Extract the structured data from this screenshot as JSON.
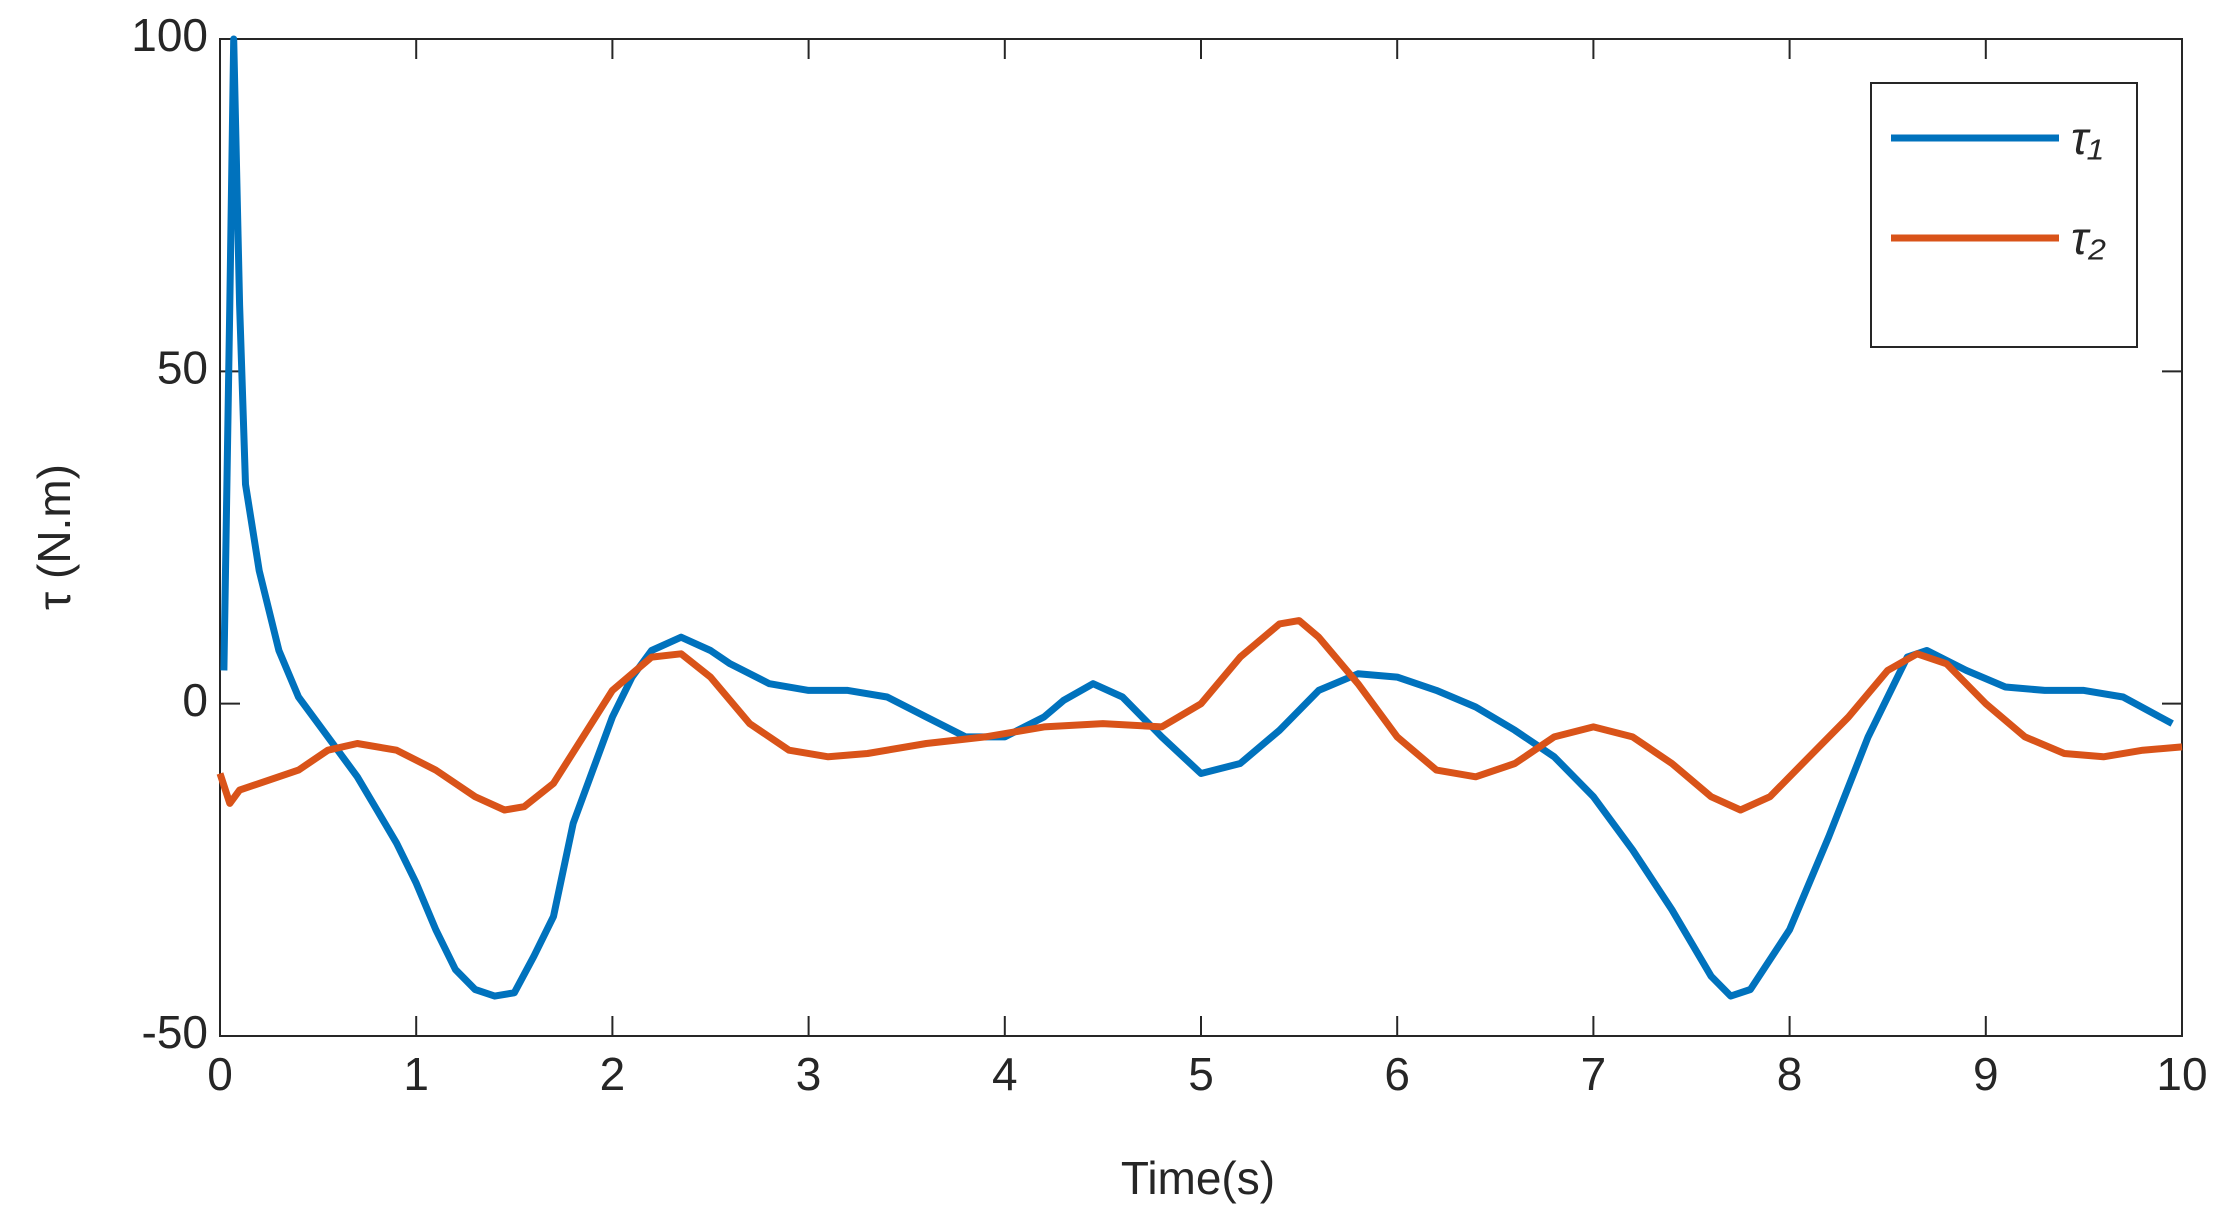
{
  "chart_data": {
    "type": "line",
    "xlabel": "Time(s)",
    "ylabel": "τ (N.m)",
    "xlim": [
      0,
      10
    ],
    "xticks": [
      0,
      1,
      2,
      3,
      4,
      5,
      6,
      7,
      8,
      9,
      10
    ],
    "ylim": [
      -50,
      100
    ],
    "yticks": [
      -50,
      0,
      50,
      100
    ],
    "grid": false,
    "legend": "upper right",
    "series": [
      {
        "name": "τ₁",
        "color": "#0072bd",
        "x": [
          0.02,
          0.05,
          0.07,
          0.1,
          0.13,
          0.2,
          0.3,
          0.4,
          0.5,
          0.6,
          0.7,
          0.8,
          0.9,
          1.0,
          1.1,
          1.2,
          1.3,
          1.4,
          1.5,
          1.6,
          1.7,
          1.8,
          1.9,
          2.0,
          2.1,
          2.2,
          2.35,
          2.5,
          2.6,
          2.8,
          3.0,
          3.2,
          3.4,
          3.6,
          3.8,
          4.0,
          4.2,
          4.3,
          4.45,
          4.6,
          4.8,
          5.0,
          5.2,
          5.4,
          5.6,
          5.8,
          6.0,
          6.2,
          6.4,
          6.6,
          6.8,
          7.0,
          7.2,
          7.4,
          7.6,
          7.7,
          7.8,
          8.0,
          8.2,
          8.4,
          8.6,
          8.7,
          8.9,
          9.1,
          9.3,
          9.5,
          9.7,
          9.95
        ],
        "values": [
          5,
          60,
          100,
          60,
          33,
          20,
          8,
          1,
          -3,
          -7,
          -11,
          -16,
          -21,
          -27,
          -34,
          -40,
          -43,
          -44,
          -43.5,
          -38,
          -32,
          -18,
          -10,
          -2,
          4,
          8,
          10,
          8,
          6,
          3,
          2,
          2,
          1,
          -2,
          -5,
          -5,
          -2,
          0.5,
          3,
          1,
          -5,
          -10.5,
          -9,
          -4,
          2,
          4.5,
          4,
          2,
          -0.5,
          -4,
          -8,
          -14,
          -22,
          -31,
          -41,
          -44,
          -43,
          -34,
          -20,
          -5,
          7,
          8,
          5,
          2.5,
          2,
          2,
          1,
          -3
        ]
      },
      {
        "name": "τ₂",
        "color": "#d95319",
        "x": [
          0.0,
          0.05,
          0.1,
          0.2,
          0.4,
          0.55,
          0.7,
          0.9,
          1.1,
          1.3,
          1.45,
          1.55,
          1.7,
          1.85,
          2.0,
          2.2,
          2.35,
          2.5,
          2.7,
          2.9,
          3.1,
          3.3,
          3.6,
          3.9,
          4.2,
          4.5,
          4.8,
          5.0,
          5.2,
          5.4,
          5.5,
          5.6,
          5.8,
          6.0,
          6.2,
          6.4,
          6.6,
          6.8,
          7.0,
          7.2,
          7.4,
          7.6,
          7.75,
          7.9,
          8.1,
          8.3,
          8.5,
          8.65,
          8.8,
          9.0,
          9.2,
          9.4,
          9.6,
          9.8,
          10.0
        ],
        "values": [
          -10.5,
          -15,
          -13,
          -12,
          -10,
          -7,
          -6,
          -7,
          -10,
          -14,
          -16,
          -15.5,
          -12,
          -5,
          2,
          7,
          7.5,
          4,
          -3,
          -7,
          -8,
          -7.5,
          -6,
          -5,
          -3.5,
          -3,
          -3.5,
          0,
          7,
          12,
          12.5,
          10,
          3,
          -5,
          -10,
          -11,
          -9,
          -5,
          -3.5,
          -5,
          -9,
          -14,
          -16,
          -14,
          -8,
          -2,
          5,
          7.5,
          6,
          0,
          -5,
          -7.5,
          -8,
          -7,
          -6.5
        ]
      }
    ]
  }
}
